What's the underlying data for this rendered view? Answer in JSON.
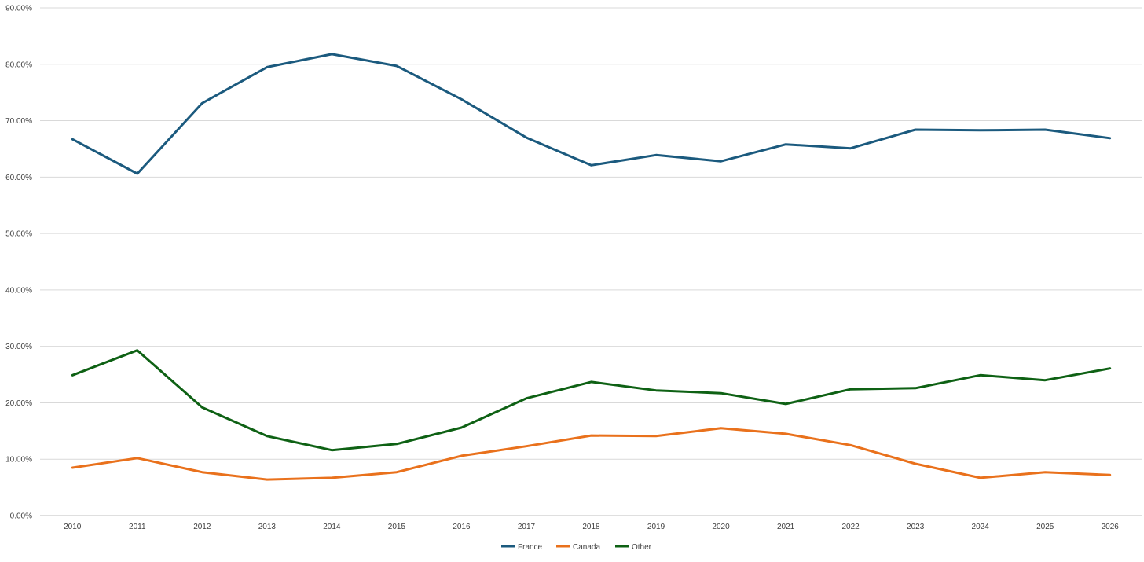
{
  "chart_data": {
    "type": "line",
    "title": "",
    "xlabel": "",
    "ylabel": "",
    "categories": [
      "2010",
      "2011",
      "2012",
      "2013",
      "2014",
      "2015",
      "2016",
      "2017",
      "2018",
      "2019",
      "2020",
      "2021",
      "2022",
      "2023",
      "2024",
      "2025",
      "2026"
    ],
    "ylim": [
      0,
      90
    ],
    "yticks": [
      "0.00%",
      "10.00%",
      "20.00%",
      "30.00%",
      "40.00%",
      "50.00%",
      "60.00%",
      "70.00%",
      "80.00%",
      "90.00%"
    ],
    "grid": true,
    "legend_position": "bottom",
    "series": [
      {
        "name": "France",
        "color": "#1b5a7e",
        "values": [
          66.7,
          60.6,
          73.1,
          79.5,
          81.8,
          79.7,
          73.8,
          67.0,
          62.1,
          63.9,
          62.8,
          65.8,
          65.1,
          68.4,
          68.3,
          68.4,
          66.9
        ]
      },
      {
        "name": "Canada",
        "color": "#e9711c",
        "values": [
          8.5,
          10.2,
          7.7,
          6.4,
          6.7,
          7.7,
          10.6,
          12.3,
          14.2,
          14.1,
          15.5,
          14.5,
          12.5,
          9.2,
          6.7,
          7.7,
          7.2
        ]
      },
      {
        "name": "Other",
        "color": "#0e6114",
        "values": [
          24.9,
          29.3,
          19.2,
          14.1,
          11.6,
          12.7,
          15.6,
          20.8,
          23.7,
          22.2,
          21.7,
          19.8,
          22.4,
          22.6,
          24.9,
          24.0,
          26.1
        ]
      }
    ]
  }
}
